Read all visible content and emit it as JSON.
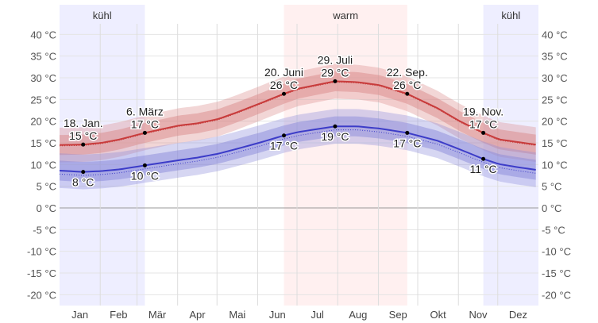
{
  "chart_data": {
    "type": "line",
    "x_unit": "day of year",
    "ylim": [
      -22,
      43
    ],
    "yticks": [
      40,
      35,
      30,
      25,
      20,
      15,
      10,
      5,
      0,
      -5,
      -10,
      -15,
      -20
    ],
    "ytick_suffix": " °C",
    "months": [
      "Jan",
      "Feb",
      "Mär",
      "Apr",
      "Mai",
      "Jun",
      "Jul",
      "Aug",
      "Sep",
      "Okt",
      "Nov",
      "Dez"
    ],
    "grid": true,
    "seasons": [
      {
        "label": "kühl",
        "from_day": 0,
        "to_day": 65,
        "color": "#eeeeff"
      },
      {
        "label": "warm",
        "from_day": 171,
        "to_day": 265,
        "color": "#fff0f0"
      },
      {
        "label": "kühl",
        "from_day": 323,
        "to_day": 365,
        "color": "#eeeeff"
      }
    ],
    "series": [
      {
        "key": "high",
        "color": "#c83c3c",
        "band_color": "#d98a8a",
        "x": [
          0,
          18,
          32,
          46,
          65,
          91,
          105,
          121,
          135,
          152,
          171,
          182,
          210,
          227,
          244,
          265,
          288,
          305,
          323,
          335,
          365
        ],
        "y": [
          14.5,
          14.6,
          15,
          15.8,
          17.3,
          19,
          19.5,
          20.5,
          22,
          24,
          26.3,
          27.5,
          29.2,
          29,
          28.3,
          26.3,
          23,
          20,
          17.3,
          15.8,
          14.5
        ]
      },
      {
        "key": "low",
        "color": "#3c3cc8",
        "band_color": "#8a8ad9",
        "x": [
          0,
          18,
          32,
          46,
          65,
          91,
          105,
          121,
          135,
          152,
          171,
          182,
          210,
          227,
          244,
          265,
          288,
          305,
          323,
          335,
          349,
          365
        ],
        "y": [
          8.6,
          8.3,
          8.5,
          8.9,
          9.8,
          11,
          11.6,
          12.5,
          13.6,
          15,
          16.7,
          17.5,
          18.8,
          18.8,
          18.3,
          17.3,
          15.5,
          13.5,
          11.3,
          10.1,
          9.4,
          8.7
        ]
      }
    ],
    "annotations": [
      {
        "day": 18,
        "series": "high",
        "date": "18. Jan.",
        "value": "15 °C"
      },
      {
        "day": 65,
        "series": "high",
        "date": "6. März",
        "value": "17 °C"
      },
      {
        "day": 171,
        "series": "high",
        "date": "20. Juni",
        "value": "26 °C"
      },
      {
        "day": 210,
        "series": "high",
        "date": "29. Juli",
        "value": "29 °C"
      },
      {
        "day": 265,
        "series": "high",
        "date": "22. Sep.",
        "value": "26 °C"
      },
      {
        "day": 323,
        "series": "high",
        "date": "19. Nov.",
        "value": "17 °C"
      },
      {
        "day": 18,
        "series": "low",
        "date": "",
        "value": "8 °C"
      },
      {
        "day": 65,
        "series": "low",
        "date": "",
        "value": "10 °C"
      },
      {
        "day": 171,
        "series": "low",
        "date": "",
        "value": "17 °C"
      },
      {
        "day": 210,
        "series": "low",
        "date": "",
        "value": "19 °C"
      },
      {
        "day": 265,
        "series": "low",
        "date": "",
        "value": "17 °C"
      },
      {
        "day": 323,
        "series": "low",
        "date": "",
        "value": "11 °C"
      }
    ]
  }
}
